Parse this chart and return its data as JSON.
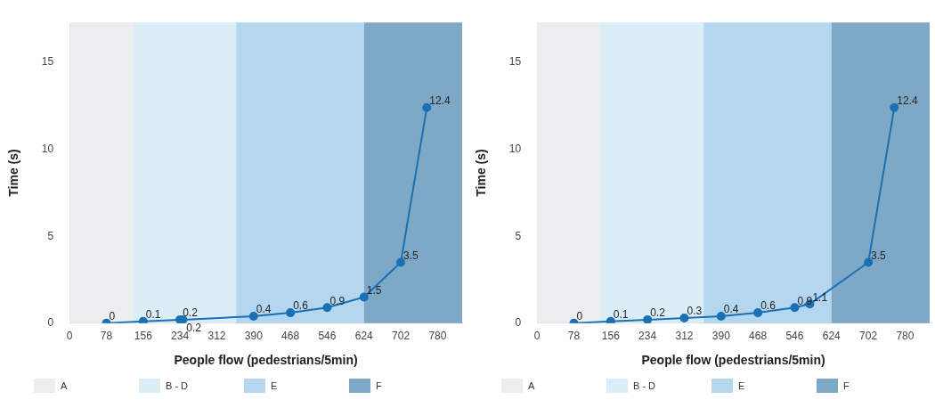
{
  "chart_data": [
    {
      "type": "line",
      "xlabel": "People flow (pedestrians/5min)",
      "ylabel": "Time (s)",
      "x": [
        78,
        156,
        234,
        240,
        390,
        468,
        546,
        624,
        702,
        757
      ],
      "series": [
        {
          "color": "#1a6fb5",
          "values": [
            0,
            0.1,
            0.2,
            0.2,
            0.4,
            0.6,
            0.9,
            1.5,
            3.5,
            12.4
          ]
        }
      ],
      "xlim": [
        0,
        832
      ],
      "xticks": [
        0,
        78,
        156,
        234,
        312,
        390,
        468,
        546,
        624,
        702,
        780
      ],
      "ylim": [
        0,
        17.3
      ],
      "yticks": [
        0,
        5,
        10,
        15
      ],
      "bands": [
        {
          "axis": "x",
          "from": 0,
          "to": 134,
          "label": "A",
          "color": "#ebedef"
        },
        {
          "axis": "x",
          "from": 134,
          "to": 353,
          "label": "B - D",
          "color": "#dbeef7"
        },
        {
          "axis": "x",
          "from": 353,
          "to": 624,
          "label": "E",
          "color": "#b4d6ee"
        },
        {
          "axis": "x",
          "from": 624,
          "to": 832,
          "label": "F",
          "color": "#7ea9c6"
        }
      ],
      "data_labels": true,
      "marker": "circle",
      "grid": false,
      "legend": "bottom"
    },
    {
      "type": "line",
      "xlabel": "People flow (pedestrians/5min)",
      "ylabel": "Time (s)",
      "x": [
        78,
        156,
        234,
        312,
        390,
        468,
        546,
        578,
        702,
        757
      ],
      "series": [
        {
          "color": "#1a6fb5",
          "values": [
            0,
            0.1,
            0.2,
            0.3,
            0.4,
            0.6,
            0.9,
            1.1,
            3.5,
            12.4
          ]
        }
      ],
      "xlim": [
        0,
        832
      ],
      "xticks": [
        0,
        78,
        156,
        234,
        312,
        390,
        468,
        546,
        624,
        702,
        780
      ],
      "ylim": [
        0,
        17.3
      ],
      "yticks": [
        0,
        5,
        10,
        15
      ],
      "bands": [
        {
          "axis": "x",
          "from": 0,
          "to": 134,
          "label": "A",
          "color": "#ebedef"
        },
        {
          "axis": "x",
          "from": 134,
          "to": 353,
          "label": "B - D",
          "color": "#dbeef7"
        },
        {
          "axis": "x",
          "from": 353,
          "to": 624,
          "label": "E",
          "color": "#b4d6ee"
        },
        {
          "axis": "x",
          "from": 624,
          "to": 832,
          "label": "F",
          "color": "#7ea9c6"
        }
      ],
      "data_labels": true,
      "marker": "circle",
      "grid": false,
      "legend": "bottom"
    }
  ]
}
